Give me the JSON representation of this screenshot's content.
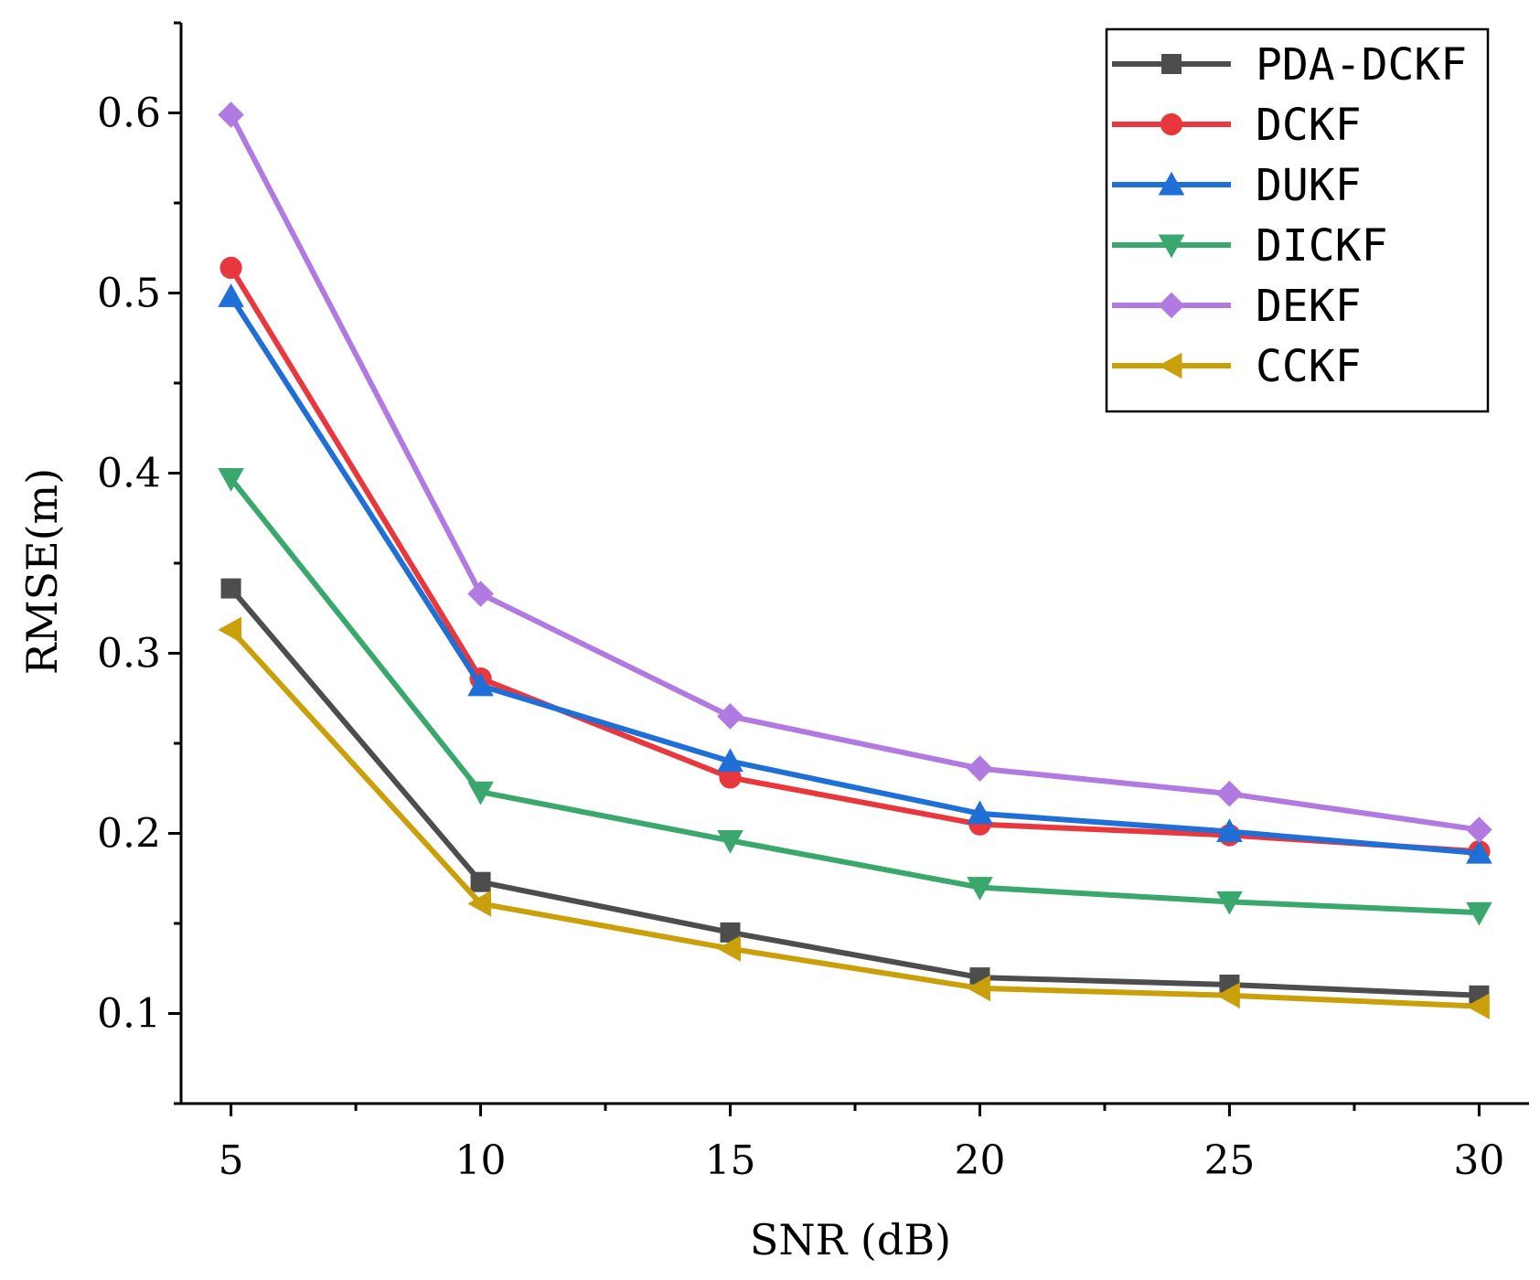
{
  "chart_data": {
    "type": "line",
    "title": "",
    "xlabel": "SNR (dB)",
    "ylabel": "RMSE(m)",
    "x": [
      5,
      10,
      15,
      20,
      25,
      30
    ],
    "xticks": [
      "5",
      "10",
      "15",
      "20",
      "25",
      "30"
    ],
    "yticks": [
      "0.1",
      "0.2",
      "0.3",
      "0.4",
      "0.5",
      "0.6"
    ],
    "xlim": [
      4,
      31
    ],
    "ylim": [
      0.05,
      0.65
    ],
    "grid": false,
    "legend_position": "top-right",
    "series": [
      {
        "name": "PDA-DCKF",
        "color": "#4d4d4d",
        "marker": "square",
        "values": [
          0.336,
          0.173,
          0.145,
          0.12,
          0.116,
          0.11
        ]
      },
      {
        "name": "DCKF",
        "color": "#e8373d",
        "marker": "circle",
        "values": [
          0.514,
          0.286,
          0.231,
          0.205,
          0.199,
          0.19
        ]
      },
      {
        "name": "DUKF",
        "color": "#1f6fd6",
        "marker": "triangle-up",
        "values": [
          0.498,
          0.282,
          0.24,
          0.211,
          0.201,
          0.189
        ]
      },
      {
        "name": "DICKF",
        "color": "#3aa86c",
        "marker": "triangle-down",
        "values": [
          0.397,
          0.223,
          0.196,
          0.17,
          0.162,
          0.156
        ]
      },
      {
        "name": "DEKF",
        "color": "#b07ae0",
        "marker": "diamond",
        "values": [
          0.599,
          0.333,
          0.265,
          0.236,
          0.222,
          0.202
        ]
      },
      {
        "name": "CCKF",
        "color": "#c9a00a",
        "marker": "triangle-left",
        "values": [
          0.313,
          0.161,
          0.136,
          0.114,
          0.11,
          0.104
        ]
      }
    ]
  }
}
